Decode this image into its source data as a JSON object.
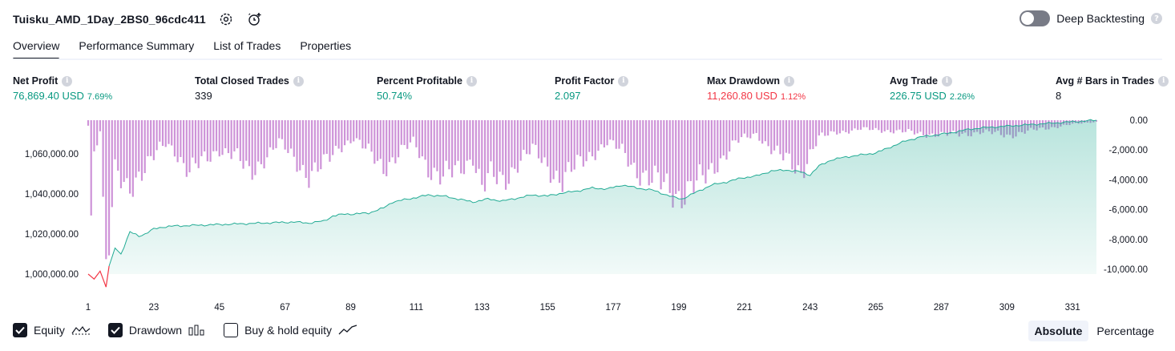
{
  "header": {
    "strategy_name": "Tuisku_AMD_1Day_2BS0_96cdc411",
    "deep_backtesting_label": "Deep Backtesting",
    "deep_backtesting_enabled": false
  },
  "tabs": [
    {
      "label": "Overview",
      "active": true
    },
    {
      "label": "Performance Summary",
      "active": false
    },
    {
      "label": "List of Trades",
      "active": false
    },
    {
      "label": "Properties",
      "active": false
    }
  ],
  "metrics": [
    {
      "label": "Net Profit",
      "value": "76,869.40 USD",
      "pct": "7.69%",
      "color": "#089981"
    },
    {
      "label": "Total Closed Trades",
      "value": "339",
      "pct": "",
      "color": "#131722"
    },
    {
      "label": "Percent Profitable",
      "value": "50.74%",
      "pct": "",
      "color": "#089981"
    },
    {
      "label": "Profit Factor",
      "value": "2.097",
      "pct": "",
      "color": "#089981"
    },
    {
      "label": "Max Drawdown",
      "value": "11,260.80 USD",
      "pct": "1.12%",
      "color": "#f23645"
    },
    {
      "label": "Avg Trade",
      "value": "226.75 USD",
      "pct": "2.26%",
      "color": "#089981"
    },
    {
      "label": "Avg # Bars in Trades",
      "value": "8",
      "pct": "",
      "color": "#131722"
    }
  ],
  "legend": {
    "equity": {
      "label": "Equity",
      "checked": true
    },
    "drawdown": {
      "label": "Drawdown",
      "checked": true
    },
    "buy_hold": {
      "label": "Buy & hold equity",
      "checked": false
    }
  },
  "modes": {
    "absolute": "Absolute",
    "percentage": "Percentage",
    "selected": "Absolute"
  },
  "chart_data": {
    "type": "area",
    "x_ticks": [
      "1",
      "23",
      "45",
      "67",
      "89",
      "111",
      "133",
      "155",
      "177",
      "199",
      "221",
      "243",
      "265",
      "287",
      "309",
      "331"
    ],
    "y_left_ticks": [
      "1,000,000.00",
      "1,020,000.00",
      "1,040,000.00",
      "1,060,000.00"
    ],
    "y_left_values": [
      1000000,
      1020000,
      1040000,
      1060000
    ],
    "y_left_range": [
      1000000,
      1076869.4
    ],
    "y_right_ticks": [
      "0.00",
      "-2,000.00",
      "-4,000.00",
      "-6,000.00",
      "-8,000.00",
      "-10,000.00"
    ],
    "y_right_values": [
      0,
      -2000,
      -4000,
      -6000,
      -8000,
      -10000
    ],
    "y_right_range": [
      -10500,
      0
    ],
    "x_range": [
      1,
      339
    ],
    "colors": {
      "equity_line": "#22ab94",
      "equity_fill": "#22ab94",
      "loss_line": "#f23645",
      "drawdown_bars": "#ce93d8"
    },
    "series": [
      {
        "name": "Equity",
        "x": [
          1,
          3,
          5,
          7,
          8,
          10,
          12,
          15,
          18,
          20,
          23,
          26,
          30,
          40,
          50,
          60,
          70,
          75,
          80,
          83,
          87,
          90,
          95,
          100,
          103,
          110,
          115,
          120,
          125,
          130,
          135,
          140,
          145,
          150,
          155,
          160,
          165,
          170,
          175,
          180,
          185,
          190,
          193,
          197,
          200,
          205,
          210,
          215,
          220,
          225,
          230,
          235,
          240,
          243,
          246,
          250,
          255,
          260,
          265,
          270,
          275,
          280,
          285,
          290,
          295,
          300,
          305,
          310,
          315,
          320,
          325,
          330,
          335,
          339
        ],
        "y": [
          1000000,
          997500,
          1001500,
          993500,
          1004000,
          1013000,
          1010000,
          1021000,
          1019000,
          1020000,
          1022500,
          1023500,
          1024000,
          1024500,
          1025000,
          1025500,
          1026000,
          1025500,
          1026500,
          1029000,
          1030000,
          1030000,
          1030500,
          1033000,
          1036000,
          1038000,
          1039500,
          1039000,
          1037500,
          1036000,
          1037500,
          1036500,
          1038000,
          1039500,
          1039000,
          1040500,
          1041500,
          1043000,
          1042500,
          1044500,
          1043000,
          1042000,
          1040500,
          1038500,
          1037500,
          1041000,
          1044500,
          1046000,
          1048000,
          1049000,
          1051500,
          1052000,
          1051000,
          1049500,
          1054000,
          1057000,
          1058500,
          1059500,
          1060500,
          1063500,
          1066500,
          1068500,
          1069500,
          1070500,
          1072000,
          1073000,
          1073500,
          1074000,
          1074500,
          1075000,
          1075500,
          1076000,
          1076500,
          1076869.4
        ]
      },
      {
        "name": "Drawdown",
        "x": [
          1,
          2,
          3,
          5,
          7,
          10,
          14,
          18,
          22,
          27,
          30,
          35,
          40,
          45,
          50,
          55,
          60,
          65,
          70,
          75,
          80,
          85,
          90,
          95,
          100,
          105,
          110,
          115,
          120,
          125,
          130,
          133,
          136,
          140,
          145,
          150,
          155,
          160,
          165,
          170,
          175,
          180,
          185,
          190,
          195,
          199,
          203,
          207,
          212,
          218,
          225,
          232,
          240,
          243,
          246,
          252,
          260,
          270,
          280,
          290,
          300,
          310,
          320,
          330,
          339
        ],
        "y": [
          -300,
          -6100,
          -2200,
          -600,
          -10500,
          -3700,
          -4700,
          -3500,
          -2700,
          -1600,
          -2000,
          -3400,
          -2800,
          -1900,
          -2300,
          -3700,
          -2500,
          -1500,
          -2600,
          -3600,
          -3100,
          -1800,
          -1200,
          -2200,
          -3100,
          -2300,
          -1500,
          -3100,
          -3900,
          -3400,
          -2400,
          -4500,
          -3900,
          -4100,
          -2800,
          -2000,
          -3100,
          -4000,
          -3100,
          -2200,
          -1500,
          -2100,
          -3300,
          -4100,
          -4500,
          -4900,
          -4600,
          -4100,
          -2800,
          -1500,
          -900,
          -2300,
          -3400,
          -2200,
          -1200,
          -800,
          -600,
          -700,
          -900,
          -1000,
          -800,
          -1000,
          -600,
          -300,
          -100
        ]
      }
    ]
  }
}
